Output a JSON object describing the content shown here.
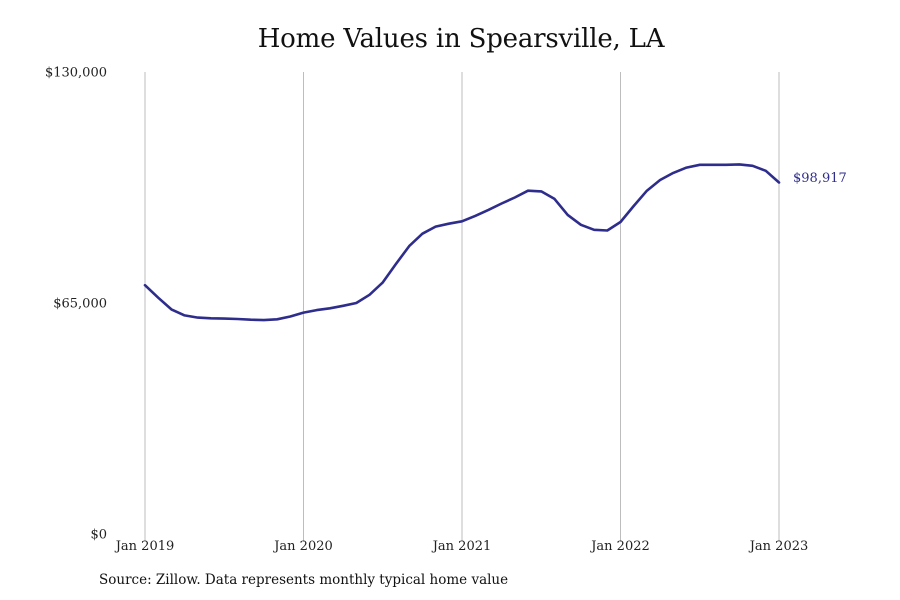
{
  "chart_data": {
    "type": "line",
    "title": "Home Values in Spearsville, LA",
    "xlabel": "",
    "ylabel": "",
    "y_ticks": [
      "$0",
      "$65,000",
      "$130,000"
    ],
    "y_tick_values": [
      0,
      65000,
      130000
    ],
    "ylim": [
      0,
      130000
    ],
    "x_ticks": [
      "Jan 2019",
      "Jan 2020",
      "Jan 2021",
      "Jan 2022",
      "Jan 2023"
    ],
    "grid": "vertical",
    "line_color": "#2e2d8c",
    "series": [
      {
        "x": [
          "2019-01",
          "2019-02",
          "2019-03",
          "2019-04",
          "2019-05",
          "2019-06",
          "2019-07",
          "2019-08",
          "2019-09",
          "2019-10",
          "2019-11",
          "2019-12",
          "2020-01",
          "2020-02",
          "2020-03",
          "2020-04",
          "2020-05",
          "2020-06",
          "2020-07",
          "2020-08",
          "2020-09",
          "2020-10",
          "2020-11",
          "2020-12",
          "2021-01",
          "2021-02",
          "2021-03",
          "2021-04",
          "2021-05",
          "2021-06",
          "2021-07",
          "2021-08",
          "2021-09",
          "2021-10",
          "2021-11",
          "2021-12",
          "2022-01",
          "2022-02",
          "2022-03",
          "2022-04",
          "2022-05",
          "2022-06",
          "2022-07",
          "2022-08",
          "2022-09",
          "2022-10",
          "2022-11",
          "2022-12",
          "2023-01"
        ],
        "values": [
          70000,
          66500,
          63200,
          61500,
          60900,
          60700,
          60600,
          60500,
          60300,
          60200,
          60400,
          61200,
          62300,
          63000,
          63500,
          64200,
          65000,
          67300,
          70800,
          76000,
          81000,
          84500,
          86500,
          87300,
          88000,
          89500,
          91200,
          93000,
          94700,
          96600,
          96400,
          94300,
          89800,
          87000,
          85600,
          85400,
          87800,
          92300,
          96600,
          99600,
          101600,
          103100,
          103900,
          103900,
          103900,
          104000,
          103600,
          102200,
          98917
        ]
      }
    ],
    "end_label": "$98,917",
    "source": "Source: Zillow. Data represents monthly typical home value"
  }
}
